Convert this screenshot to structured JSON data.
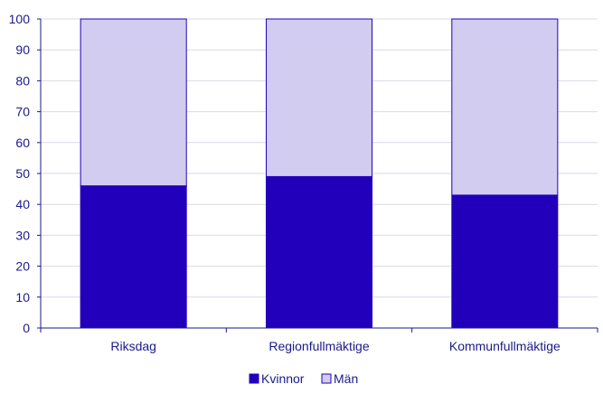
{
  "chart_data": {
    "type": "bar",
    "stacked": true,
    "categories": [
      "Riksdag",
      "Regionfullmäktige",
      "Kommunfullmäktige"
    ],
    "series": [
      {
        "name": "Kvinnor",
        "values": [
          46,
          49,
          43
        ],
        "color": "#2200bb"
      },
      {
        "name": "Män",
        "values": [
          54,
          51,
          57
        ],
        "color": "#d2ccf0"
      }
    ],
    "ylim": [
      0,
      100
    ],
    "yticks": [
      0,
      10,
      20,
      30,
      40,
      50,
      60,
      70,
      80,
      90,
      100
    ],
    "grid": true,
    "legend_position": "bottom-center",
    "colors": {
      "axis": "#1a1a8c",
      "grid": "#d9d9e6",
      "bar_edge": "#2200bb"
    }
  }
}
